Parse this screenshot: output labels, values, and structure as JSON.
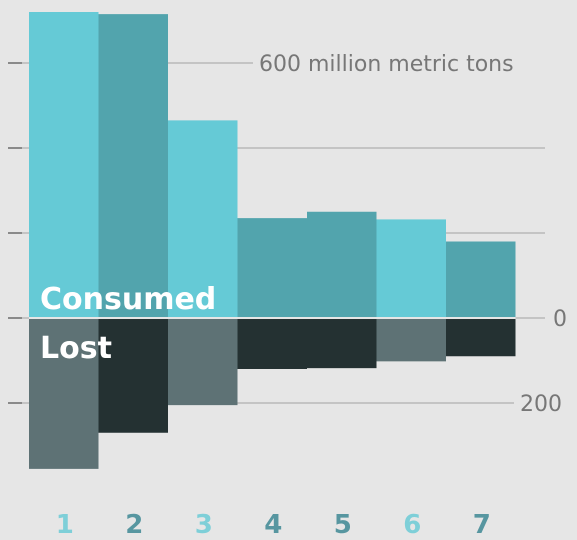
{
  "chart_data": {
    "type": "bar",
    "categories": [
      "1",
      "2",
      "3",
      "4",
      "5",
      "6",
      "7"
    ],
    "series": [
      {
        "name": "Consumed",
        "values": [
          720,
          715,
          465,
          235,
          250,
          232,
          180
        ]
      },
      {
        "name": "Lost",
        "values": [
          -355,
          -270,
          -205,
          -120,
          -118,
          -102,
          -90
        ]
      }
    ],
    "ylim": [
      -390,
      720
    ],
    "ytick_labels": [
      {
        "value": 600,
        "label": "600 million metric tons"
      },
      {
        "value": 0,
        "label": "0"
      },
      {
        "value": -200,
        "label": "200"
      }
    ],
    "gridlines": [
      600,
      400,
      200,
      0,
      -200
    ],
    "legend": "inline-left",
    "colors": {
      "consumed_light": "#65cad6",
      "consumed_dark": "#52a4ad",
      "lost_light": "#5e7275",
      "lost_dark": "#243132",
      "grid": "#c4c4c4",
      "tick_mark": "#8a8a8a",
      "label_light": "#7ecfd8",
      "label_dark": "#5796a0",
      "background": "#e6e6e6"
    }
  }
}
